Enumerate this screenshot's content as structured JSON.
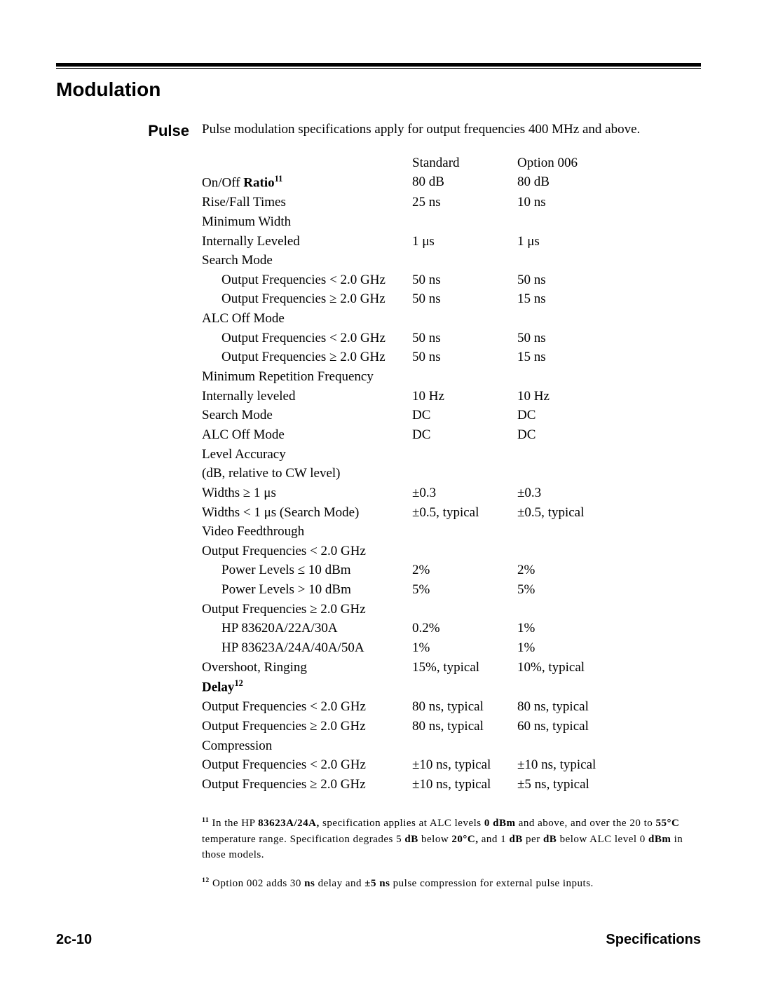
{
  "section_title": "Modulation",
  "side_label": "Pulse",
  "intro": "Pulse modulation specifications apply for output frequencies 400 MHz and above.",
  "headers": {
    "std": "Standard",
    "opt": "Option 006"
  },
  "rows": [
    {
      "label": "On/Off Ratio",
      "sup": "11",
      "label_bold_tail": true,
      "std": "80 dB",
      "opt": "80 dB"
    },
    {
      "label": "Rise/Fall Times",
      "std": "25 ns",
      "opt": "10 ns"
    },
    {
      "label": "Minimum Width"
    },
    {
      "label": "Internally Leveled",
      "std": "1 μs",
      "opt": "1 μs"
    },
    {
      "label": "Search Mode"
    },
    {
      "label": "Output Frequencies < 2.0 GHz",
      "indent": 1,
      "std": "50 ns",
      "opt": "50 ns"
    },
    {
      "label": "Output Frequencies ≥ 2.0 GHz",
      "indent": 1,
      "std": "50 ns",
      "opt": "15 ns"
    },
    {
      "label": "ALC Off Mode"
    },
    {
      "label": "Output Frequencies < 2.0 GHz",
      "indent": 1,
      "std": "50 ns",
      "opt": "50 ns"
    },
    {
      "label": "Output Frequencies ≥ 2.0 GHz",
      "indent": 1,
      "std": "50 ns",
      "opt": "15 ns"
    },
    {
      "label": "Minimum Repetition Frequency"
    },
    {
      "label": "Internally leveled",
      "std": "10 Hz",
      "opt": "10 Hz"
    },
    {
      "label": "Search Mode",
      "std": "DC",
      "opt": "DC"
    },
    {
      "label": "ALC Off Mode",
      "std": "DC",
      "opt": "DC"
    },
    {
      "label": "Level Accuracy"
    },
    {
      "label": "(dB, relative to CW level)"
    },
    {
      "label": "Widths ≥ 1 μs",
      "std": "±0.3",
      "opt": "±0.3"
    },
    {
      "label": "Widths < 1 μs (Search Mode)",
      "std": "±0.5, typical",
      "opt": "±0.5, typical"
    },
    {
      "label": "Video Feedthrough"
    },
    {
      "label": "Output Frequencies < 2.0 GHz"
    },
    {
      "label": "Power Levels ≤ 10 dBm",
      "indent": 1,
      "std": "2%",
      "opt": "2%"
    },
    {
      "label": "Power Levels > 10 dBm",
      "indent": 1,
      "std": "5%",
      "opt": "5%"
    },
    {
      "label": "Output Frequencies ≥ 2.0 GHz"
    },
    {
      "label": "HP 83620A/22A/30A",
      "indent": 1,
      "std": "0.2%",
      "opt": "1%"
    },
    {
      "label": "HP 83623A/24A/40A/50A",
      "indent": 1,
      "std": "1%",
      "opt": "1%"
    },
    {
      "label": "Overshoot, Ringing",
      "std": "15%, typical",
      "opt": "10%, typical"
    },
    {
      "label": "Delay",
      "sup": "12",
      "label_bold": true
    },
    {
      "label": "Output Frequencies < 2.0 GHz",
      "std": "80 ns, typical",
      "opt": "80 ns, typical"
    },
    {
      "label": "Output Frequencies ≥ 2.0 GHz",
      "std": "80 ns, typical",
      "opt": "60 ns, typical"
    },
    {
      "label": "Compression"
    },
    {
      "label": "Output Frequencies < 2.0 GHz",
      "std": "±10 ns, typical",
      "opt": "±10 ns, typical"
    },
    {
      "label": "Output Frequencies ≥ 2.0 GHz",
      "std": "±10 ns, typical",
      "opt": "±5 ns, typical"
    }
  ],
  "footnotes": {
    "fn11_num": "11",
    "fn11_text_parts": [
      " In the HP ",
      "83623A/24A,",
      " specification applies at ALC levels ",
      "0 dBm",
      " and above, and over the 20 to ",
      "55°C",
      " temperature range. Specification degrades 5 ",
      "dB",
      " below ",
      "20°C,",
      " and 1 ",
      "dB",
      " per ",
      "dB",
      " below ALC level 0 ",
      "dBm",
      " in those models."
    ],
    "fn12_num": "12",
    "fn12_text_parts": [
      " Option 002 adds 30 ",
      "ns",
      " delay and ",
      "±5 ns",
      " pulse compression for external pulse inputs."
    ]
  },
  "footer": {
    "left": "2c-10",
    "right": "Specifications"
  }
}
